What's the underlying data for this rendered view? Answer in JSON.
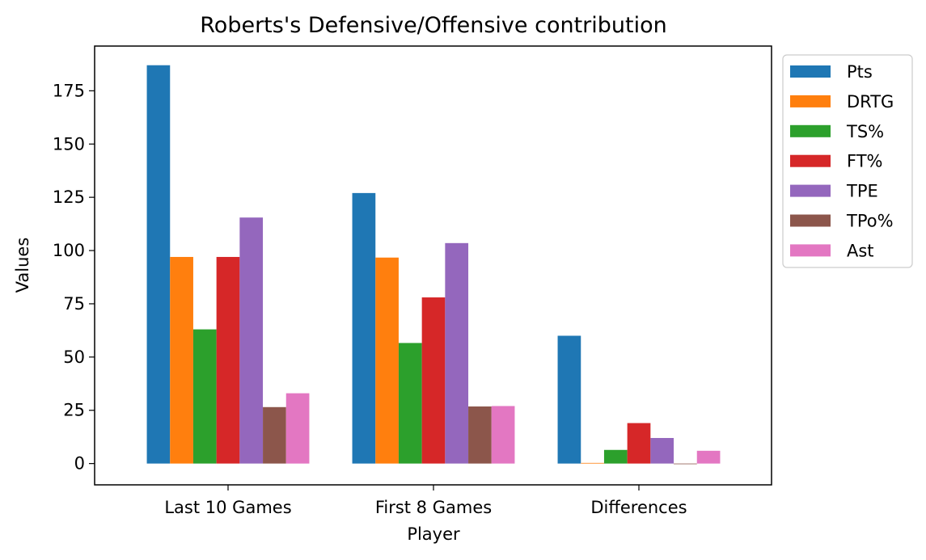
{
  "chart_data": {
    "type": "bar",
    "title": "Roberts's Defensive/Offensive contribution",
    "xlabel": "Player",
    "ylabel": "Values",
    "categories": [
      "Last 10 Games",
      "First 8 Games",
      "Differences"
    ],
    "ylim": [
      -10,
      196
    ],
    "yticks": [
      0,
      25,
      50,
      75,
      100,
      125,
      150,
      175
    ],
    "legend_position": "outside-top-right",
    "grid": false,
    "series": [
      {
        "name": "Pts",
        "color": "#1f77b4",
        "values": [
          187,
          127,
          60
        ]
      },
      {
        "name": "DRTG",
        "color": "#ff7f0e",
        "values": [
          97,
          96.7,
          0.3
        ]
      },
      {
        "name": "TS%",
        "color": "#2ca02c",
        "values": [
          63,
          56.6,
          6.4
        ]
      },
      {
        "name": "FT%",
        "color": "#d62728",
        "values": [
          97,
          78,
          19
        ]
      },
      {
        "name": "TPE",
        "color": "#9467bd",
        "values": [
          115.5,
          103.5,
          12
        ]
      },
      {
        "name": "TPo%",
        "color": "#8c564b",
        "values": [
          26.5,
          26.8,
          -0.3
        ]
      },
      {
        "name": "Ast",
        "color": "#e377c2",
        "values": [
          33,
          27,
          6
        ]
      }
    ]
  }
}
